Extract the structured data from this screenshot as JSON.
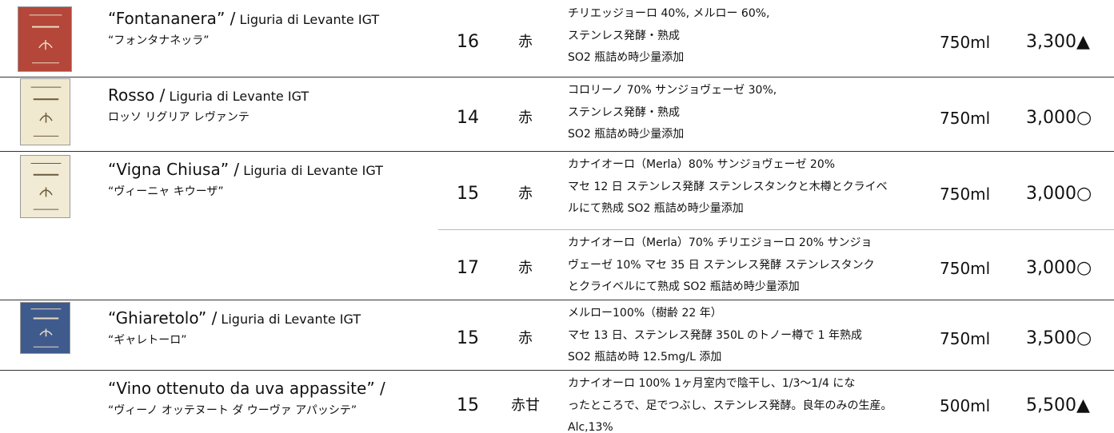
{
  "wines": [
    {
      "name": "“Fontananera” /",
      "appellation": "Liguria di Levante IGT",
      "kana": "“フォンタナネッラ”",
      "entries": [
        {
          "vintage": 16,
          "color": "赤",
          "notes": [
            "チリエッジョーロ 40%, メルロー 60%,",
            "ステンレス発酵・熟成",
            "SO2 瓶詰め時少量添加"
          ],
          "volume": "750ml",
          "price": "3,300▲"
        }
      ]
    },
    {
      "name": "Rosso /",
      "appellation": "Liguria di Levante IGT",
      "kana": "ロッソ リグリア レヴァンテ",
      "entries": [
        {
          "vintage": 14,
          "color": "赤",
          "notes": [
            "コロリーノ 70% サンジョヴェーゼ 30%,",
            "ステンレス発酵・熟成",
            "SO2 瓶詰め時少量添加"
          ],
          "volume": "750ml",
          "price": "3,000○"
        }
      ]
    },
    {
      "name": "“Vigna Chiusa” /",
      "appellation": "Liguria di Levante IGT",
      "kana": "“ヴィーニャ キウーザ”",
      "entries": [
        {
          "vintage": 15,
          "color": "赤",
          "notes": [
            "カナイオーロ（Merla）80% サンジョヴェーゼ 20%",
            "マセ 12 日 ステンレス発酵 ステンレスタンクと木樽とクライベ",
            "ルにて熟成 SO2 瓶詰め時少量添加"
          ],
          "volume": "750ml",
          "price": "3,000○"
        },
        {
          "vintage": 17,
          "color": "赤",
          "notes": [
            "カナイオーロ（Merla）70% チリエジョーロ 20% サンジョ",
            "ヴェーゼ 10% マセ 35 日 ステンレス発酵 ステンレスタンク",
            "とクライベルにて熟成 SO2 瓶詰め時少量添加"
          ],
          "volume": "750ml",
          "price": "3,000○"
        }
      ]
    },
    {
      "name": "“Ghiaretolo” /",
      "appellation": "Liguria di Levante IGT",
      "kana": "“ギャレトーロ”",
      "entries": [
        {
          "vintage": 15,
          "color": "赤",
          "notes": [
            "メルロー100%（樹齢 22 年）",
            "マセ 13 日、ステンレス発酵 350L のトノー樽で 1 年熟成",
            "SO2 瓶詰め時 12.5mg/L 添加"
          ],
          "volume": "750ml",
          "price": "3,500○"
        }
      ]
    },
    {
      "name": "“Vino ottenuto da uva appassite” /",
      "kana": "“ヴィーノ オッテヌート ダ ウーヴァ アパッシテ”",
      "entries": [
        {
          "vintage": 15,
          "color": "赤甘",
          "notes": [
            "カナイオーロ 100% 1ヶ月室内で陰干し、1/3～1/4 にな",
            "ったところで、足でつぶし、ステンレス発酵。良年のみの生産。",
            "Alc,13%"
          ],
          "volume": "500ml",
          "price": "5,500▲"
        }
      ]
    }
  ]
}
